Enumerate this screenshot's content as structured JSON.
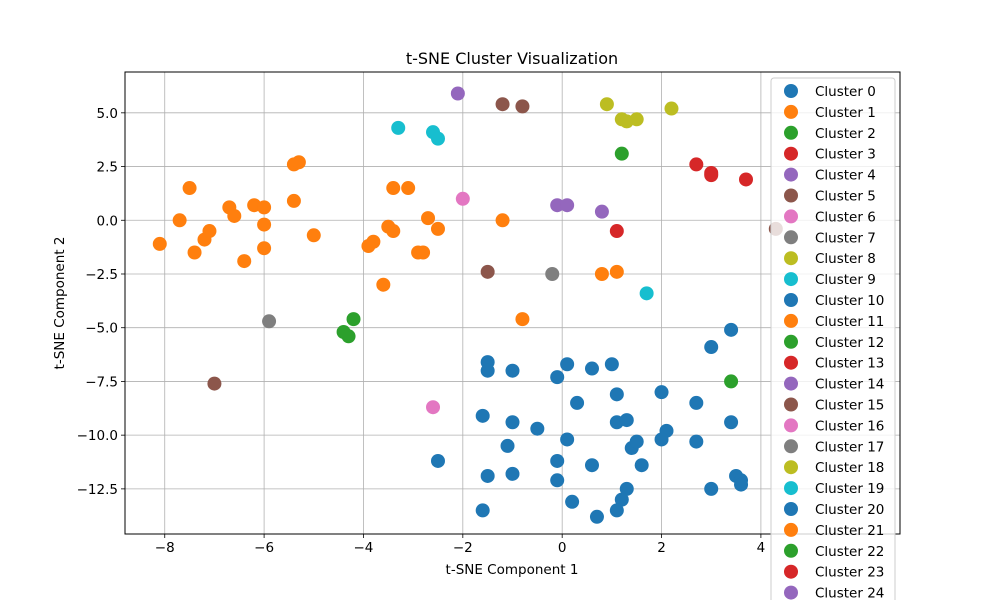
{
  "chart_data": {
    "type": "scatter",
    "title": "t-SNE Cluster Visualization",
    "xlabel": "t-SNE Component 1",
    "ylabel": "t-SNE Component 2",
    "xlim": [
      -8.8,
      6.8
    ],
    "ylim": [
      -14.6,
      6.9
    ],
    "xticks": [
      -8,
      -6,
      -4,
      -2,
      0,
      2,
      4
    ],
    "xtick_labels": [
      "−8",
      "−6",
      "−4",
      "−2",
      "0",
      "2",
      "4"
    ],
    "yticks": [
      5.0,
      2.5,
      0.0,
      -2.5,
      -5.0,
      -7.5,
      -10.0,
      -12.5
    ],
    "ytick_labels": [
      "5.0",
      "2.5",
      "0.0",
      "−2.5",
      "−5.0",
      "−7.5",
      "−10.0",
      "−12.5"
    ],
    "grid": true,
    "legend_position": "upper-right",
    "series": [
      {
        "name": "Cluster 0",
        "color": "#1f77b4",
        "points": [
          [
            0.1,
            -6.7
          ],
          [
            -0.1,
            -7.3
          ],
          [
            -1.5,
            -6.6
          ],
          [
            -1.5,
            -7.0
          ],
          [
            -1.0,
            -7.0
          ],
          [
            0.6,
            -6.9
          ],
          [
            1.0,
            -6.7
          ],
          [
            1.1,
            -8.1
          ],
          [
            0.3,
            -8.5
          ]
        ]
      },
      {
        "name": "Cluster 1",
        "color": "#ff7f0e",
        "points": [
          [
            -8.1,
            -1.1
          ],
          [
            -7.7,
            0.0
          ],
          [
            -7.5,
            1.5
          ],
          [
            -7.4,
            -1.5
          ],
          [
            -7.2,
            -0.9
          ],
          [
            -7.1,
            -0.5
          ],
          [
            -6.7,
            0.6
          ],
          [
            -6.6,
            0.2
          ],
          [
            -6.4,
            -1.9
          ],
          [
            -6.2,
            0.7
          ],
          [
            -6.0,
            0.6
          ],
          [
            -6.0,
            -0.2
          ],
          [
            -6.0,
            -1.3
          ],
          [
            -5.4,
            2.6
          ],
          [
            -5.3,
            2.7
          ],
          [
            -5.4,
            0.9
          ],
          [
            -5.0,
            -0.7
          ]
        ]
      },
      {
        "name": "Cluster 2",
        "color": "#2ca02c",
        "points": [
          [
            -4.4,
            -5.2
          ],
          [
            -4.3,
            -5.4
          ],
          [
            -4.2,
            -4.6
          ]
        ]
      },
      {
        "name": "Cluster 3",
        "color": "#d62728",
        "points": [
          [
            2.7,
            2.6
          ],
          [
            3.0,
            2.2
          ],
          [
            3.0,
            2.1
          ],
          [
            3.7,
            1.9
          ]
        ]
      },
      {
        "name": "Cluster 4",
        "color": "#9467bd",
        "points": [
          [
            -2.1,
            5.9
          ],
          [
            -0.1,
            0.7
          ],
          [
            0.1,
            0.7
          ],
          [
            0.8,
            0.4
          ]
        ]
      },
      {
        "name": "Cluster 5",
        "color": "#8c564b",
        "points": [
          [
            -1.2,
            5.4
          ],
          [
            -0.8,
            5.3
          ],
          [
            -1.5,
            -2.4
          ]
        ]
      },
      {
        "name": "Cluster 6",
        "color": "#e377c2",
        "points": [
          [
            -2.0,
            1.0
          ]
        ]
      },
      {
        "name": "Cluster 7",
        "color": "#7f7f7f",
        "points": [
          [
            -0.2,
            -2.5
          ]
        ]
      },
      {
        "name": "Cluster 8",
        "color": "#bcbd22",
        "points": [
          [
            0.9,
            5.4
          ],
          [
            1.2,
            4.7
          ],
          [
            1.3,
            4.6
          ],
          [
            1.5,
            4.7
          ],
          [
            2.2,
            5.2
          ]
        ]
      },
      {
        "name": "Cluster 9",
        "color": "#17becf",
        "points": [
          [
            -3.3,
            4.3
          ],
          [
            -2.6,
            4.1
          ],
          [
            -2.5,
            3.8
          ],
          [
            1.7,
            -3.4
          ]
        ]
      },
      {
        "name": "Cluster 10",
        "color": "#1f77b4",
        "points": [
          [
            3.4,
            -5.1
          ],
          [
            3.0,
            -5.9
          ],
          [
            2.0,
            -8.0
          ],
          [
            2.7,
            -8.5
          ],
          [
            3.4,
            -9.4
          ],
          [
            2.1,
            -9.8
          ],
          [
            2.0,
            -10.2
          ],
          [
            2.7,
            -10.3
          ],
          [
            1.4,
            -10.6
          ],
          [
            1.5,
            -10.3
          ],
          [
            1.6,
            -11.4
          ],
          [
            1.3,
            -12.5
          ],
          [
            1.2,
            -13.0
          ],
          [
            3.0,
            -12.5
          ],
          [
            3.5,
            -11.9
          ],
          [
            3.6,
            -12.1
          ],
          [
            3.6,
            -12.3
          ]
        ]
      },
      {
        "name": "Cluster 11",
        "color": "#ff7f0e",
        "points": [
          [
            -3.4,
            1.5
          ],
          [
            -3.1,
            1.5
          ],
          [
            -3.5,
            -0.3
          ],
          [
            -3.4,
            -0.5
          ],
          [
            -3.8,
            -1.0
          ],
          [
            -3.9,
            -1.2
          ],
          [
            -2.9,
            -1.5
          ],
          [
            -2.8,
            -1.5
          ],
          [
            -2.7,
            0.1
          ],
          [
            -2.5,
            -0.4
          ],
          [
            -1.2,
            0.0
          ],
          [
            -3.6,
            -3.0
          ]
        ]
      },
      {
        "name": "Cluster 12",
        "color": "#2ca02c",
        "points": [
          [
            1.2,
            3.1
          ]
        ]
      },
      {
        "name": "Cluster 13",
        "color": "#d62728",
        "points": [
          [
            1.1,
            -0.5
          ]
        ]
      },
      {
        "name": "Cluster 15",
        "color": "#8c564b",
        "points": [
          [
            -7.0,
            -7.6
          ],
          [
            4.3,
            -0.4
          ]
        ]
      },
      {
        "name": "Cluster 16",
        "color": "#e377c2",
        "points": [
          [
            -2.6,
            -8.7
          ]
        ]
      },
      {
        "name": "Cluster 17",
        "color": "#7f7f7f",
        "points": [
          [
            -5.9,
            -4.7
          ]
        ]
      },
      {
        "name": "Cluster 20",
        "color": "#1f77b4",
        "points": [
          [
            -1.6,
            -9.1
          ],
          [
            -1.0,
            -9.4
          ],
          [
            -0.5,
            -9.7
          ],
          [
            0.1,
            -10.2
          ],
          [
            -1.1,
            -10.5
          ],
          [
            -2.5,
            -11.2
          ],
          [
            -0.1,
            -11.2
          ],
          [
            -1.5,
            -11.9
          ],
          [
            -1.0,
            -11.8
          ],
          [
            -0.1,
            -12.1
          ],
          [
            0.6,
            -11.4
          ],
          [
            0.2,
            -13.1
          ],
          [
            -1.6,
            -13.5
          ],
          [
            0.7,
            -13.8
          ],
          [
            1.1,
            -13.5
          ],
          [
            1.1,
            -9.4
          ],
          [
            1.3,
            -9.3
          ]
        ]
      },
      {
        "name": "Cluster 21",
        "color": "#ff7f0e",
        "points": [
          [
            -0.8,
            -4.6
          ],
          [
            0.8,
            -2.5
          ],
          [
            1.1,
            -2.4
          ]
        ]
      },
      {
        "name": "Cluster 22",
        "color": "#2ca02c",
        "points": [
          [
            3.4,
            -7.5
          ]
        ]
      },
      {
        "name": "Cluster 23",
        "color": "#d62728",
        "points": []
      },
      {
        "name": "Cluster 24",
        "color": "#9467bd",
        "points": []
      },
      {
        "name": "Cluster 14",
        "color": "#9467bd",
        "points": []
      },
      {
        "name": "Cluster 18",
        "color": "#bcbd22",
        "points": []
      },
      {
        "name": "Cluster 19",
        "color": "#17becf",
        "points": []
      }
    ],
    "legend_entries": [
      {
        "label": "Cluster 0",
        "color": "#1f77b4"
      },
      {
        "label": "Cluster 1",
        "color": "#ff7f0e"
      },
      {
        "label": "Cluster 2",
        "color": "#2ca02c"
      },
      {
        "label": "Cluster 3",
        "color": "#d62728"
      },
      {
        "label": "Cluster 4",
        "color": "#9467bd"
      },
      {
        "label": "Cluster 5",
        "color": "#8c564b"
      },
      {
        "label": "Cluster 6",
        "color": "#e377c2"
      },
      {
        "label": "Cluster 7",
        "color": "#7f7f7f"
      },
      {
        "label": "Cluster 8",
        "color": "#bcbd22"
      },
      {
        "label": "Cluster 9",
        "color": "#17becf"
      },
      {
        "label": "Cluster 10",
        "color": "#1f77b4"
      },
      {
        "label": "Cluster 11",
        "color": "#ff7f0e"
      },
      {
        "label": "Cluster 12",
        "color": "#2ca02c"
      },
      {
        "label": "Cluster 13",
        "color": "#d62728"
      },
      {
        "label": "Cluster 14",
        "color": "#9467bd"
      },
      {
        "label": "Cluster 15",
        "color": "#8c564b"
      },
      {
        "label": "Cluster 16",
        "color": "#e377c2"
      },
      {
        "label": "Cluster 17",
        "color": "#7f7f7f"
      },
      {
        "label": "Cluster 18",
        "color": "#bcbd22"
      },
      {
        "label": "Cluster 19",
        "color": "#17becf"
      },
      {
        "label": "Cluster 20",
        "color": "#1f77b4"
      },
      {
        "label": "Cluster 21",
        "color": "#ff7f0e"
      },
      {
        "label": "Cluster 22",
        "color": "#2ca02c"
      },
      {
        "label": "Cluster 23",
        "color": "#d62728"
      },
      {
        "label": "Cluster 24",
        "color": "#9467bd"
      }
    ]
  }
}
